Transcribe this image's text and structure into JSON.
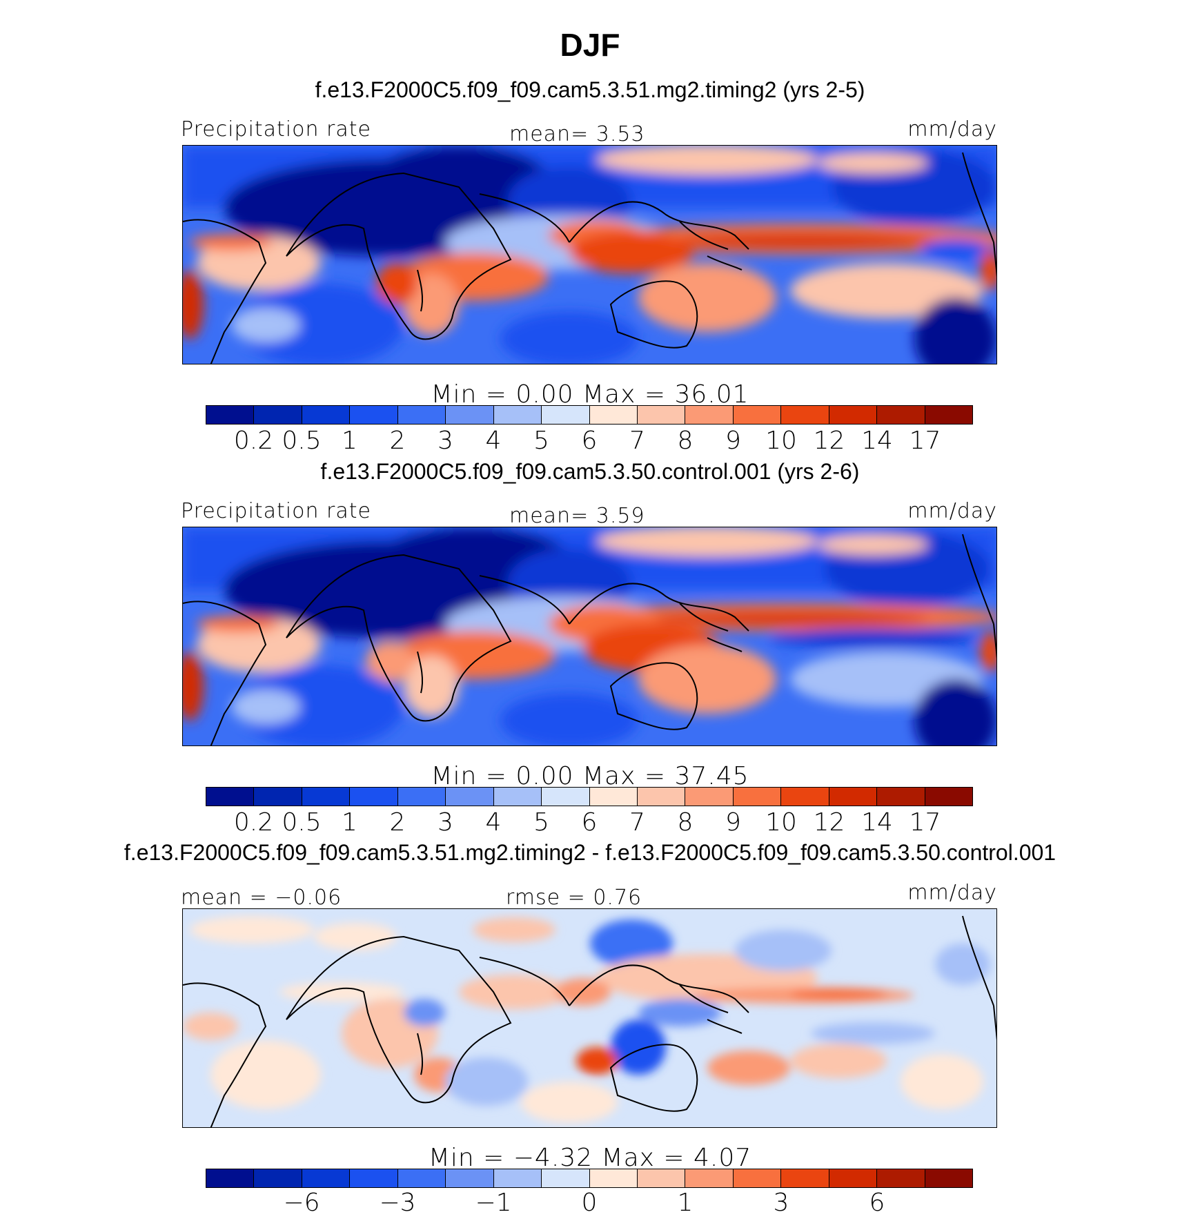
{
  "figure": {
    "title": "DJF"
  },
  "panels": [
    {
      "title": "f.e13.F2000C5.f09_f09.cam5.3.51.mg2.timing2 (yrs 2-5)",
      "left_label": "Precipitation rate",
      "center_label": "mean=    3.53",
      "right_label": "mm/day",
      "minmax": "Min  =     0.00  Max  =    36.01",
      "colorbar_ticks": [
        "0.2",
        "0.5",
        "1",
        "2",
        "3",
        "4",
        "5",
        "6",
        "7",
        "8",
        "9",
        "10",
        "12",
        "14",
        "17"
      ]
    },
    {
      "title": "f.e13.F2000C5.f09_f09.cam5.3.50.control.001 (yrs 2-6)",
      "left_label": "Precipitation rate",
      "center_label": "mean=    3.59",
      "right_label": "mm/day",
      "minmax": "Min  =     0.00  Max  =    37.45",
      "colorbar_ticks": [
        "0.2",
        "0.5",
        "1",
        "2",
        "3",
        "4",
        "5",
        "6",
        "7",
        "8",
        "9",
        "10",
        "12",
        "14",
        "17"
      ]
    },
    {
      "title": "f.e13.F2000C5.f09_f09.cam5.3.51.mg2.timing2 - f.e13.F2000C5.f09_f09.cam5.3.50.control.001",
      "left_label": "mean  =   −0.06",
      "center_label": "rmse  =    0.76",
      "right_label": "mm/day",
      "minmax": "Min  =   −4.32  Max  =    4.07",
      "colorbar_ticks": [
        "−6",
        "",
        "−3",
        "",
        "−1",
        "",
        "0",
        "",
        "1",
        "",
        "3",
        "",
        "6",
        "",
        ""
      ]
    }
  ],
  "colormap": [
    "#000f8f",
    "#0025b0",
    "#0739d4",
    "#1b51f0",
    "#3b6ff5",
    "#6b92f5",
    "#a6c0f8",
    "#d6e5fb",
    "#ffe8d8",
    "#fcc5ac",
    "#fb9a75",
    "#f8703e",
    "#ea4510",
    "#d22a00",
    "#ad1b00",
    "#8a0a00"
  ],
  "chart_data": [
    {
      "type": "heatmap",
      "title": "f.e13.F2000C5.f09_f09.cam5.3.51.mg2.timing2 (yrs 2-5)",
      "variable": "Precipitation rate",
      "units": "mm/day",
      "mean": 3.53,
      "min": 0.0,
      "max": 36.01,
      "contour_levels": [
        0.2,
        0.5,
        1,
        2,
        3,
        4,
        5,
        6,
        7,
        8,
        9,
        10,
        12,
        14,
        17
      ]
    },
    {
      "type": "heatmap",
      "title": "f.e13.F2000C5.f09_f09.cam5.3.50.control.001 (yrs 2-6)",
      "variable": "Precipitation rate",
      "units": "mm/day",
      "mean": 3.59,
      "min": 0.0,
      "max": 37.45,
      "contour_levels": [
        0.2,
        0.5,
        1,
        2,
        3,
        4,
        5,
        6,
        7,
        8,
        9,
        10,
        12,
        14,
        17
      ]
    },
    {
      "type": "heatmap",
      "title": "f.e13.F2000C5.f09_f09.cam5.3.51.mg2.timing2 - f.e13.F2000C5.f09_f09.cam5.3.50.control.001",
      "units": "mm/day",
      "mean": -0.06,
      "rmse": 0.76,
      "min": -4.32,
      "max": 4.07,
      "contour_levels": [
        -6,
        -3,
        -1,
        0,
        1,
        3,
        6
      ]
    }
  ]
}
